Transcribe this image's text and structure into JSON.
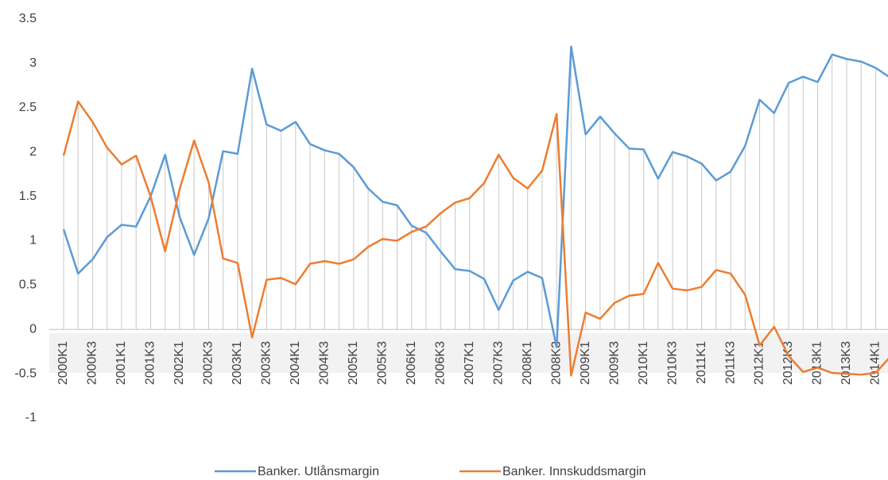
{
  "chart_data": {
    "type": "line",
    "categories": [
      "2000K1",
      null,
      "2000K3",
      null,
      "2001K1",
      null,
      "2001K3",
      null,
      "2002K1",
      null,
      "2002K3",
      null,
      "2003K1",
      null,
      "2003K3",
      null,
      "2004K1",
      null,
      "2004K3",
      null,
      "2005K1",
      null,
      "2005K3",
      null,
      "2006K1",
      null,
      "2006K3",
      null,
      "2007K1",
      null,
      "2007K3",
      null,
      "2008K1",
      null,
      "2008K3",
      null,
      "2009K1",
      null,
      "2009K3",
      null,
      "2010K1",
      null,
      "2010K3",
      null,
      "2011K1",
      null,
      "2011K3",
      null,
      "2012K1",
      null,
      "2012K3",
      null,
      "2013K1",
      null,
      "2013K3",
      null,
      "2014K1",
      null
    ],
    "series": [
      {
        "name": "Banker. Utlånsmargin",
        "color": "#5b9bd5",
        "values": [
          1.13,
          0.63,
          0.79,
          1.04,
          1.18,
          1.16,
          1.5,
          1.97,
          1.27,
          0.84,
          1.25,
          2.01,
          1.98,
          2.94,
          2.31,
          2.24,
          2.34,
          2.09,
          2.02,
          1.98,
          1.83,
          1.59,
          1.44,
          1.4,
          1.17,
          1.09,
          0.88,
          0.68,
          0.66,
          0.57,
          0.22,
          0.55,
          0.65,
          0.58,
          -0.2,
          3.19,
          2.2,
          2.4,
          2.21,
          2.04,
          2.03,
          1.7,
          2.0,
          1.95,
          1.87,
          1.68,
          1.78,
          2.07,
          2.59,
          2.44,
          2.78,
          2.85,
          2.79,
          3.1,
          3.05,
          3.02,
          2.95,
          2.84
        ]
      },
      {
        "name": "Banker. Innskuddsmargin",
        "color": "#ed7d31",
        "values": [
          1.96,
          2.57,
          2.34,
          2.05,
          1.86,
          1.96,
          1.5,
          0.88,
          1.58,
          2.13,
          1.66,
          0.8,
          0.75,
          -0.09,
          0.56,
          0.58,
          0.51,
          0.74,
          0.77,
          0.74,
          0.79,
          0.93,
          1.02,
          1.0,
          1.1,
          1.16,
          1.31,
          1.43,
          1.48,
          1.65,
          1.97,
          1.71,
          1.59,
          1.79,
          2.43,
          -0.52,
          0.19,
          0.12,
          0.3,
          0.38,
          0.4,
          0.75,
          0.46,
          0.44,
          0.48,
          0.67,
          0.63,
          0.39,
          -0.18,
          0.03,
          -0.3,
          -0.48,
          -0.43,
          -0.49,
          -0.5,
          -0.51,
          -0.49,
          -0.31
        ]
      }
    ],
    "ylim": [
      -1,
      3.5
    ],
    "yticks": [
      -1,
      -0.5,
      0,
      0.5,
      1,
      1.5,
      2,
      2.5,
      3,
      3.5
    ]
  }
}
